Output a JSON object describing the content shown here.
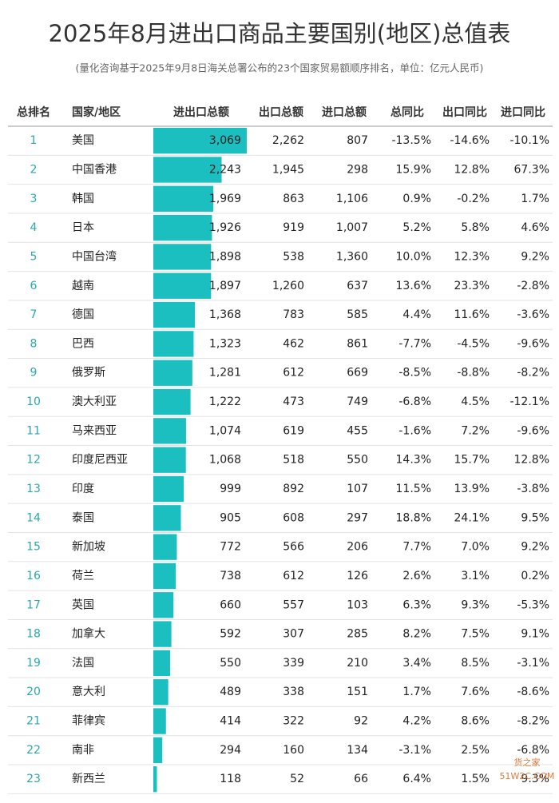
{
  "header": {
    "title": "2025年8月进出口商品主要国别(地区)总值表",
    "subtitle": "(量化咨询基于2025年9月8日海关总署公布的23个国家贸易额顺序排名，单位：亿元人民币)"
  },
  "table": {
    "columns": [
      "总排名",
      "国家/地区",
      "进出口总额",
      "出口总额",
      "进口总额",
      "总同比",
      "出口同比",
      "进口同比"
    ],
    "rows": [
      {
        "rank": 1,
        "country": "美国",
        "total": {
          "value": 3069,
          "label": "3,069"
        },
        "exports": "2,262",
        "imports": "807",
        "yoy": "-13.5%",
        "export_yoy": "-14.6%",
        "import_yoy": "-10.1%"
      },
      {
        "rank": 2,
        "country": "中国香港",
        "total": {
          "value": 2243,
          "label": "2,243"
        },
        "exports": "1,945",
        "imports": "298",
        "yoy": "15.9%",
        "export_yoy": "12.8%",
        "import_yoy": "67.3%"
      },
      {
        "rank": 3,
        "country": "韩国",
        "total": {
          "value": 1969,
          "label": "1,969"
        },
        "exports": "863",
        "imports": "1,106",
        "yoy": "0.9%",
        "export_yoy": "-0.2%",
        "import_yoy": "1.7%"
      },
      {
        "rank": 4,
        "country": "日本",
        "total": {
          "value": 1926,
          "label": "1,926"
        },
        "exports": "919",
        "imports": "1,007",
        "yoy": "5.2%",
        "export_yoy": "5.8%",
        "import_yoy": "4.6%"
      },
      {
        "rank": 5,
        "country": "中国台湾",
        "total": {
          "value": 1898,
          "label": "1,898"
        },
        "exports": "538",
        "imports": "1,360",
        "yoy": "10.0%",
        "export_yoy": "12.3%",
        "import_yoy": "9.2%"
      },
      {
        "rank": 6,
        "country": "越南",
        "total": {
          "value": 1897,
          "label": "1,897"
        },
        "exports": "1,260",
        "imports": "637",
        "yoy": "13.6%",
        "export_yoy": "23.3%",
        "import_yoy": "-2.8%"
      },
      {
        "rank": 7,
        "country": "德国",
        "total": {
          "value": 1368,
          "label": "1,368"
        },
        "exports": "783",
        "imports": "585",
        "yoy": "4.4%",
        "export_yoy": "11.6%",
        "import_yoy": "-3.6%"
      },
      {
        "rank": 8,
        "country": "巴西",
        "total": {
          "value": 1323,
          "label": "1,323"
        },
        "exports": "462",
        "imports": "861",
        "yoy": "-7.7%",
        "export_yoy": "-4.5%",
        "import_yoy": "-9.6%"
      },
      {
        "rank": 9,
        "country": "俄罗斯",
        "total": {
          "value": 1281,
          "label": "1,281"
        },
        "exports": "612",
        "imports": "669",
        "yoy": "-8.5%",
        "export_yoy": "-8.8%",
        "import_yoy": "-8.2%"
      },
      {
        "rank": 10,
        "country": "澳大利亚",
        "total": {
          "value": 1222,
          "label": "1,222"
        },
        "exports": "473",
        "imports": "749",
        "yoy": "-6.8%",
        "export_yoy": "4.5%",
        "import_yoy": "-12.1%"
      },
      {
        "rank": 11,
        "country": "马来西亚",
        "total": {
          "value": 1074,
          "label": "1,074"
        },
        "exports": "619",
        "imports": "455",
        "yoy": "-1.6%",
        "export_yoy": "7.2%",
        "import_yoy": "-9.6%"
      },
      {
        "rank": 12,
        "country": "印度尼西亚",
        "total": {
          "value": 1068,
          "label": "1,068"
        },
        "exports": "518",
        "imports": "550",
        "yoy": "14.3%",
        "export_yoy": "15.7%",
        "import_yoy": "12.8%"
      },
      {
        "rank": 13,
        "country": "印度",
        "total": {
          "value": 999,
          "label": "999"
        },
        "exports": "892",
        "imports": "107",
        "yoy": "11.5%",
        "export_yoy": "13.9%",
        "import_yoy": "-3.8%"
      },
      {
        "rank": 14,
        "country": "泰国",
        "total": {
          "value": 905,
          "label": "905"
        },
        "exports": "608",
        "imports": "297",
        "yoy": "18.8%",
        "export_yoy": "24.1%",
        "import_yoy": "9.5%"
      },
      {
        "rank": 15,
        "country": "新加坡",
        "total": {
          "value": 772,
          "label": "772"
        },
        "exports": "566",
        "imports": "206",
        "yoy": "7.7%",
        "export_yoy": "7.0%",
        "import_yoy": "9.2%"
      },
      {
        "rank": 16,
        "country": "荷兰",
        "total": {
          "value": 738,
          "label": "738"
        },
        "exports": "612",
        "imports": "126",
        "yoy": "2.6%",
        "export_yoy": "3.1%",
        "import_yoy": "0.2%"
      },
      {
        "rank": 17,
        "country": "英国",
        "total": {
          "value": 660,
          "label": "660"
        },
        "exports": "557",
        "imports": "103",
        "yoy": "6.3%",
        "export_yoy": "9.3%",
        "import_yoy": "-5.3%"
      },
      {
        "rank": 18,
        "country": "加拿大",
        "total": {
          "value": 592,
          "label": "592"
        },
        "exports": "307",
        "imports": "285",
        "yoy": "8.2%",
        "export_yoy": "7.5%",
        "import_yoy": "9.1%"
      },
      {
        "rank": 19,
        "country": "法国",
        "total": {
          "value": 550,
          "label": "550"
        },
        "exports": "339",
        "imports": "210",
        "yoy": "3.4%",
        "export_yoy": "8.5%",
        "import_yoy": "-3.1%"
      },
      {
        "rank": 20,
        "country": "意大利",
        "total": {
          "value": 489,
          "label": "489"
        },
        "exports": "338",
        "imports": "151",
        "yoy": "1.7%",
        "export_yoy": "7.6%",
        "import_yoy": "-8.6%"
      },
      {
        "rank": 21,
        "country": "菲律宾",
        "total": {
          "value": 414,
          "label": "414"
        },
        "exports": "322",
        "imports": "92",
        "yoy": "4.2%",
        "export_yoy": "8.6%",
        "import_yoy": "-8.2%"
      },
      {
        "rank": 22,
        "country": "南非",
        "total": {
          "value": 294,
          "label": "294"
        },
        "exports": "160",
        "imports": "134",
        "yoy": "-3.1%",
        "export_yoy": "2.5%",
        "import_yoy": "-6.8%"
      },
      {
        "rank": 23,
        "country": "新西兰",
        "total": {
          "value": 118,
          "label": "118"
        },
        "exports": "52",
        "imports": "66",
        "yoy": "6.4%",
        "export_yoy": "1.5%",
        "import_yoy": "9.3%"
      }
    ]
  },
  "watermark": {
    "brand": "货之家",
    "site": "51W2C.COM"
  }
}
